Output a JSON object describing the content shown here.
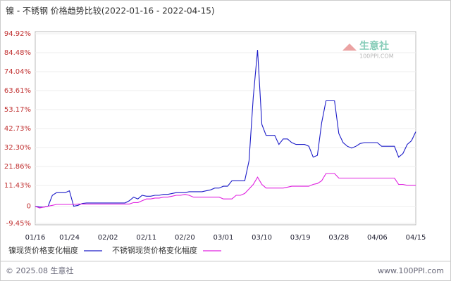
{
  "chart_data": {
    "type": "line",
    "title": "镍 - 不锈钢 价格趋势比较(2022-01-16 - 2022-04-15)",
    "categories": [
      "01/16",
      null,
      null,
      null,
      null,
      null,
      null,
      null,
      "01/24",
      null,
      null,
      null,
      null,
      null,
      null,
      null,
      null,
      "02/02",
      null,
      null,
      null,
      null,
      null,
      null,
      null,
      null,
      "02/11",
      null,
      null,
      null,
      null,
      null,
      null,
      null,
      null,
      "02/20",
      null,
      null,
      null,
      null,
      null,
      null,
      null,
      null,
      "03/01",
      null,
      null,
      null,
      null,
      null,
      null,
      null,
      null,
      "03/10",
      null,
      null,
      null,
      null,
      null,
      null,
      null,
      null,
      "03/19",
      null,
      null,
      null,
      null,
      null,
      null,
      null,
      null,
      "03/28",
      null,
      null,
      null,
      null,
      null,
      null,
      null,
      null,
      "04/06",
      null,
      null,
      null,
      null,
      null,
      null,
      null,
      null,
      "04/15"
    ],
    "series": [
      {
        "name": "镍现货价格变化幅度",
        "color": "#1c1cc8",
        "values": [
          0,
          -0.5,
          -0.5,
          0,
          6,
          7.5,
          7.5,
          7.5,
          8.5,
          0,
          0.5,
          1.5,
          1.8,
          1.8,
          1.8,
          1.8,
          1.8,
          1.8,
          1.8,
          1.8,
          1.8,
          1.8,
          3,
          5,
          4,
          6,
          5.5,
          5.5,
          6,
          6,
          6.5,
          6.5,
          7,
          7.5,
          7.5,
          7.5,
          8,
          8,
          8,
          8,
          8.5,
          9,
          10,
          10,
          11,
          11,
          14,
          14,
          14,
          14,
          25,
          60,
          86,
          45,
          39,
          39,
          39,
          34,
          37,
          37,
          35,
          34,
          34,
          34,
          33,
          27,
          28,
          46,
          58,
          58,
          58,
          40,
          35,
          33,
          32,
          33,
          34.5,
          35,
          35,
          35,
          35,
          33,
          33,
          33,
          33,
          27,
          29,
          34,
          36,
          41
        ]
      },
      {
        "name": "不锈钢现货价格变化幅度",
        "color": "#e020e0",
        "values": [
          0,
          -1,
          -0.5,
          0,
          0.5,
          1,
          1,
          1,
          1,
          1,
          1.2,
          1.2,
          1.2,
          1.2,
          1.2,
          1.2,
          1.2,
          1.2,
          1.2,
          1.2,
          1.2,
          1.2,
          1.2,
          2,
          2,
          3,
          4,
          4,
          4.5,
          4.5,
          5,
          5,
          5.5,
          6,
          6,
          6.5,
          6,
          5,
          5,
          5,
          5,
          5,
          5,
          5,
          4,
          4,
          4,
          6,
          6,
          7,
          9.5,
          12,
          16,
          12,
          10,
          10,
          10,
          10,
          10,
          10.5,
          11,
          11,
          11,
          11,
          11,
          12,
          12.5,
          14,
          18,
          18,
          18,
          15.5,
          15.5,
          15.5,
          15.5,
          15.5,
          15.5,
          15.5,
          15.5,
          15.5,
          15.5,
          15.5,
          15.5,
          15.5,
          15.5,
          12,
          12,
          11.5,
          11.5,
          11.5
        ]
      }
    ],
    "ylim": [
      -9.45,
      94.92
    ],
    "yticks": [
      {
        "value": 94.92,
        "label": "94.92%"
      },
      {
        "value": 84.48,
        "label": "84.48%"
      },
      {
        "value": 74.04,
        "label": "74.04%"
      },
      {
        "value": 63.61,
        "label": "63.61%"
      },
      {
        "value": 53.17,
        "label": "53.17%"
      },
      {
        "value": 42.73,
        "label": "42.73%"
      },
      {
        "value": 32.3,
        "label": "32.30%"
      },
      {
        "value": 21.86,
        "label": "21.86%"
      },
      {
        "value": 11.43,
        "label": "11.43%"
      },
      0,
      {
        "value": -9.45,
        "label": "-9.45%"
      }
    ],
    "grid": true
  },
  "branding": {
    "name": "生意社",
    "site": "100PPI.COM"
  },
  "footer": {
    "copyright": "© 2025.08 生意社",
    "site": "www.100PPI.com"
  }
}
